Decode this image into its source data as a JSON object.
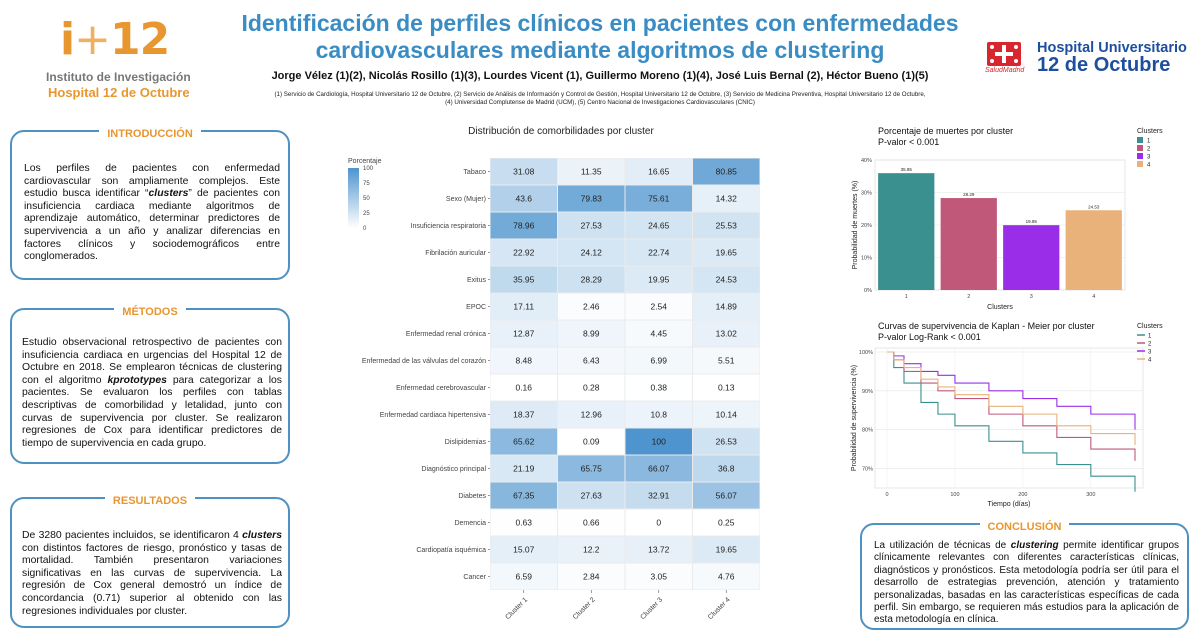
{
  "header": {
    "logo_left_mark_i": "i",
    "logo_left_mark_plus": "+",
    "logo_left_mark_num": "12",
    "logo_left_line1": "Instituto de Investigación",
    "logo_left_line2": "Hospital 12 de Octubre",
    "title_line1": "Identificación de perfiles clínicos en pacientes con enfermedades",
    "title_line2": "cardiovasculares mediante algoritmos de clustering",
    "authors": "Jorge Vélez (1)(2), Nicolás Rosillo (1)(3), Lourdes Vicent (1), Guillermo Moreno (1)(4), José Luis Bernal (2), Héctor Bueno (1)(5)",
    "affiliations_line1": "(1) Servicio de Cardiología, Hospital Universitario 12 de Octubre, (2) Servicio de Análisis de Información y Control de Gestión, Hospital Universitario 12 de Octubre, (3) Servicio de Medicina Preventiva, Hospital Universitario 12 de Octubre,",
    "affiliations_line2": "(4) Universidad Complutense de Madrid (UCM), (5) Centro Nacional de Investigaciones Cardiovasculares (CNIC)",
    "logo_right_madrid": "SaludMadrid",
    "logo_right_line1": "Hospital Universitario",
    "logo_right_line2": "12 de Octubre"
  },
  "sections": {
    "intro": {
      "title": "INTRODUCCIÓN",
      "text_a": "Los perfiles de pacientes con enfermedad cardiovascular son ampliamente complejos. Este estudio busca identificar “",
      "text_em": "clusters",
      "text_b": "” de pacientes con insuficiencia cardiaca mediante algoritmos de aprendizaje automático, determinar predictores de supervivencia a un año y analizar diferencias en factores clínicos y sociodemográficos entre conglomerados."
    },
    "metodos": {
      "title": "MÉTODOS",
      "text_a": "Estudio observacional retrospectivo de pacientes con insuficiencia cardiaca en urgencias del Hospital 12 de Octubre en 2018. Se emplearon técnicas de clustering con el algoritmo ",
      "text_em": "kprototypes",
      "text_b": " para categorizar a los pacientes. Se evaluaron los perfiles con tablas descriptivas de comorbilidad y letalidad, junto con curvas de supervivencia por cluster. Se realizaron regresiones de Cox para identificar predictores de tiempo de supervivencia en cada grupo."
    },
    "resultados": {
      "title": "RESULTADOS",
      "text_a": "De 3280 pacientes incluidos, se identificaron 4 ",
      "text_em": "clusters",
      "text_b": " con distintos factores de riesgo, pronóstico y tasas de mortalidad. También presentaron variaciones significativas en las curvas de supervivencia. La regresión de Cox general demostró un índice de concordancia (0.71) superior al obtenido con las regresiones individuales por cluster."
    },
    "conclusion": {
      "title": "CONCLUSIÓN",
      "text_a": "La utilización de técnicas de ",
      "text_em": "clustering",
      "text_b": " permite identificar grupos clínicamente relevantes con diferentes características clínicas, diagnósticos y pronósticos. Esta metodología podría ser útil para el desarrollo de estrategias prevención, atención y tratamiento personalizadas, basadas en las características específicas de cada perfil. Sin embargo, se requieren más estudios para la aplicación de esta metodología en clínica."
    }
  },
  "chart_data": [
    {
      "type": "heatmap",
      "title": "Distribución de comorbilidades por cluster",
      "legend_title": "Porcentaje",
      "legend_ticks": [
        100,
        75,
        50,
        25,
        0
      ],
      "x": [
        "Cluster 1",
        "Cluster 2",
        "Cluster 3",
        "Cluster 4"
      ],
      "y": [
        "Tabaco",
        "Sexo (Mujer)",
        "Insuficiencia respiratoria",
        "Fibrilación auricular",
        "Exitus",
        "EPOC",
        "Enfermedad renal crónica",
        "Enfermedad de las válvulas del corazón",
        "Enfermedad cerebrovascular",
        "Enfermedad cardiaca hipertensiva",
        "Dislipidemias",
        "Diagnóstico principal",
        "Diabetes",
        "Demencia",
        "Cardiopatía isquémica",
        "Cancer"
      ],
      "values": [
        [
          31.08,
          11.35,
          16.65,
          80.85
        ],
        [
          43.6,
          79.83,
          75.61,
          14.32
        ],
        [
          78.96,
          27.53,
          24.65,
          25.53
        ],
        [
          22.92,
          24.12,
          22.74,
          19.65
        ],
        [
          35.95,
          28.29,
          19.95,
          24.53
        ],
        [
          17.11,
          2.46,
          2.54,
          14.89
        ],
        [
          12.87,
          8.99,
          4.45,
          13.02
        ],
        [
          8.48,
          6.43,
          6.99,
          5.51
        ],
        [
          0.16,
          0.28,
          0.38,
          0.13
        ],
        [
          18.37,
          12.96,
          10.8,
          10.14
        ],
        [
          65.62,
          0.09,
          100,
          26.53
        ],
        [
          21.19,
          65.75,
          66.07,
          36.8
        ],
        [
          67.35,
          27.63,
          32.91,
          56.07
        ],
        [
          0.63,
          0.66,
          0,
          0.25
        ],
        [
          15.07,
          12.2,
          13.72,
          19.65
        ],
        [
          6.59,
          2.84,
          3.05,
          4.76
        ]
      ]
    },
    {
      "type": "bar",
      "title": "Porcentaje de muertes por cluster",
      "subtitle": "P-valor < 0.001",
      "categories": [
        "1",
        "2",
        "3",
        "4"
      ],
      "values": [
        35.95,
        28.29,
        19.95,
        24.53
      ],
      "value_labels": [
        "35.95",
        "28.29",
        "19.95",
        "24.53"
      ],
      "colors": [
        "#3a8f8f",
        "#c0587a",
        "#9a2ee8",
        "#e8b27a"
      ],
      "xlabel": "Clusters",
      "ylabel": "Probabilidad de muertes (%)",
      "yticks": [
        "0%",
        "10%",
        "20%",
        "30%",
        "40%"
      ],
      "ylim": [
        0,
        40
      ],
      "legend_title": "Clusters",
      "legend": [
        "1",
        "2",
        "3",
        "4"
      ],
      "legend_position": "top-right"
    },
    {
      "type": "line",
      "title": "Curvas de supervivencia de Kaplan - Meier por cluster",
      "subtitle": "P-valor Log-Rank < 0.001",
      "xlabel": "Tiempo (días)",
      "ylabel": "Probabilidad de supervivencia (%)",
      "xticks": [
        "0",
        "100",
        "200",
        "300"
      ],
      "yticks": [
        "100%",
        "90%",
        "80%",
        "70%"
      ],
      "xlim": [
        0,
        365
      ],
      "ylim": [
        66,
        100
      ],
      "legend_title": "Clusters",
      "legend": [
        "1",
        "2",
        "3",
        "4"
      ],
      "legend_position": "top-right",
      "series": [
        {
          "name": "1",
          "color": "#3a8f8f",
          "x": [
            0,
            10,
            25,
            50,
            75,
            100,
            150,
            200,
            250,
            300,
            365
          ],
          "y": [
            100,
            96,
            92,
            87,
            84,
            81,
            77,
            74,
            71,
            68,
            64
          ]
        },
        {
          "name": "2",
          "color": "#c0587a",
          "x": [
            0,
            10,
            25,
            50,
            75,
            100,
            150,
            200,
            250,
            300,
            365
          ],
          "y": [
            100,
            98,
            95,
            92,
            90,
            88,
            84,
            81,
            78,
            75,
            72
          ]
        },
        {
          "name": "3",
          "color": "#9a2ee8",
          "x": [
            0,
            10,
            25,
            50,
            75,
            100,
            150,
            200,
            250,
            300,
            365
          ],
          "y": [
            100,
            99,
            97,
            95,
            94,
            92,
            90,
            88,
            86,
            84,
            80
          ]
        },
        {
          "name": "4",
          "color": "#e8b27a",
          "x": [
            0,
            10,
            25,
            50,
            75,
            100,
            150,
            200,
            250,
            300,
            365
          ],
          "y": [
            100,
            98,
            96,
            93,
            91,
            89,
            86,
            84,
            81,
            79,
            76
          ]
        }
      ]
    }
  ]
}
